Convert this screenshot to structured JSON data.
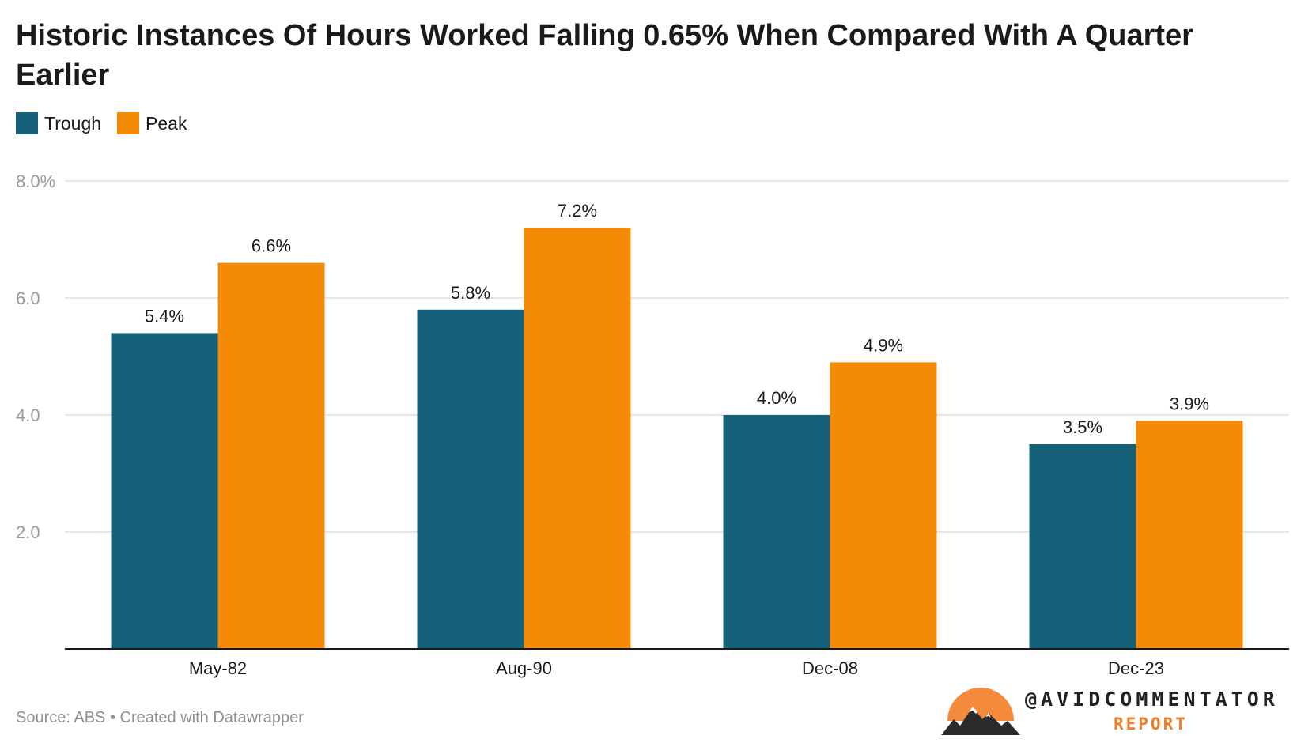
{
  "title": "Historic Instances Of Hours Worked Falling 0.65% When Compared With A Quarter Earlier",
  "legend": [
    {
      "label": "Trough",
      "color": "#17607a"
    },
    {
      "label": "Peak",
      "color": "#f58a07"
    }
  ],
  "source": "Source: ABS • Created with Datawrapper",
  "brand": {
    "handle": "@AVIDCOMMENTATOR",
    "sub": "REPORT"
  },
  "chart_data": {
    "type": "bar",
    "title": "Historic Instances Of Hours Worked Falling 0.65% When Compared With A Quarter Earlier",
    "categories": [
      "May-82",
      "Aug-90",
      "Dec-08",
      "Dec-23"
    ],
    "series": [
      {
        "name": "Trough",
        "color": "#17607a",
        "values": [
          5.4,
          5.8,
          4.0,
          3.5
        ],
        "labels": [
          "5.4%",
          "5.8%",
          "4.0%",
          "3.5%"
        ]
      },
      {
        "name": "Peak",
        "color": "#f58a07",
        "values": [
          6.6,
          7.2,
          4.9,
          3.9
        ],
        "labels": [
          "6.6%",
          "7.2%",
          "4.9%",
          "3.9%"
        ]
      }
    ],
    "ylim": [
      0,
      8
    ],
    "yticks": [
      2,
      4,
      6,
      8
    ],
    "ytick_labels": [
      "2.0",
      "4.0",
      "6.0",
      "8.0%"
    ],
    "grid": true,
    "legend_position": "top-left"
  }
}
